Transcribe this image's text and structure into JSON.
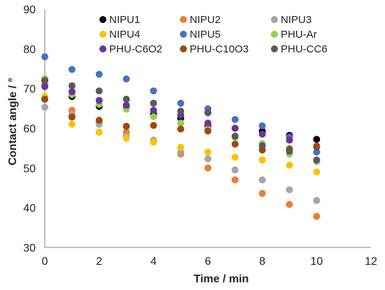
{
  "chart_data": {
    "type": "scatter",
    "xlabel": "Time / min",
    "ylabel": "Contact angle / °",
    "xlim": [
      0,
      12
    ],
    "ylim": [
      30,
      90
    ],
    "xticks": [
      0,
      2,
      4,
      6,
      8,
      10,
      12
    ],
    "yticks": [
      30,
      40,
      50,
      60,
      70,
      80,
      90
    ],
    "grid": false,
    "legend_position": "top",
    "series": [
      {
        "name": "NIPU1",
        "color": "#000000",
        "x": [
          0,
          1,
          2,
          3,
          4,
          5,
          6,
          7,
          8,
          9,
          10
        ],
        "y": [
          72.0,
          68.0,
          65.5,
          65.0,
          63.5,
          62.5,
          60.5,
          60.0,
          59.3,
          58.2,
          57.2
        ]
      },
      {
        "name": "NIPU2",
        "color": "#ed7d31",
        "x": [
          0,
          1,
          2,
          3,
          4,
          5,
          6,
          7,
          8,
          9,
          10
        ],
        "y": [
          71.0,
          64.5,
          61.5,
          59.0,
          56.5,
          53.5,
          50.0,
          47.0,
          43.6,
          40.8,
          37.8
        ]
      },
      {
        "name": "NIPU3",
        "color": "#a5a5a5",
        "x": [
          0,
          1,
          2,
          3,
          4,
          5,
          6,
          7,
          8,
          9,
          10
        ],
        "y": [
          65.3,
          63.5,
          61.0,
          58.0,
          57.0,
          54.0,
          52.3,
          49.5,
          47.0,
          44.5,
          41.8
        ]
      },
      {
        "name": "NIPU4",
        "color": "#ffc000",
        "x": [
          0,
          1,
          2,
          3,
          4,
          5,
          6,
          7,
          8,
          9,
          10
        ],
        "y": [
          68.0,
          61.0,
          59.0,
          57.5,
          56.5,
          55.2,
          54.0,
          52.7,
          52.0,
          50.7,
          49.0
        ]
      },
      {
        "name": "NIPU5",
        "color": "#4472c4",
        "x": [
          0,
          1,
          2,
          3,
          4,
          5,
          6,
          7,
          8,
          9,
          10
        ],
        "y": [
          78.0,
          74.8,
          73.6,
          72.4,
          69.4,
          66.3,
          64.9,
          62.2,
          60.6,
          57.8,
          54.0
        ]
      },
      {
        "name": "PHU-Ar",
        "color": "#92d050",
        "x": [
          0,
          1,
          2,
          3,
          4,
          5,
          6,
          7,
          8,
          9,
          10
        ],
        "y": [
          72.5,
          68.5,
          66.0,
          64.8,
          62.9,
          61.3,
          59.9,
          57.7,
          56.1,
          53.5,
          51.6
        ]
      },
      {
        "name": "PHU-C6O2",
        "color": "#7030a0",
        "x": [
          0,
          1,
          2,
          3,
          4,
          5,
          6,
          7,
          8,
          9,
          10
        ],
        "y": [
          70.5,
          69.2,
          67.0,
          65.8,
          64.5,
          63.3,
          61.3,
          60.0,
          58.5,
          57.0,
          55.3
        ]
      },
      {
        "name": "PHU-C10O3",
        "color": "#9e480e",
        "x": [
          0,
          1,
          2,
          3,
          4,
          5,
          6,
          7,
          8,
          9,
          10
        ],
        "y": [
          67.3,
          62.8,
          62.0,
          60.5,
          60.7,
          59.8,
          59.3,
          56.0,
          54.5,
          54.8,
          55.5
        ]
      },
      {
        "name": "PHU-CC6",
        "color": "#595959",
        "x": [
          0,
          1,
          2,
          3,
          4,
          5,
          6,
          7,
          8,
          9,
          10
        ],
        "y": [
          72.0,
          70.7,
          69.4,
          67.3,
          66.3,
          64.3,
          63.9,
          58.0,
          55.6,
          54.2,
          52.0
        ]
      }
    ]
  }
}
